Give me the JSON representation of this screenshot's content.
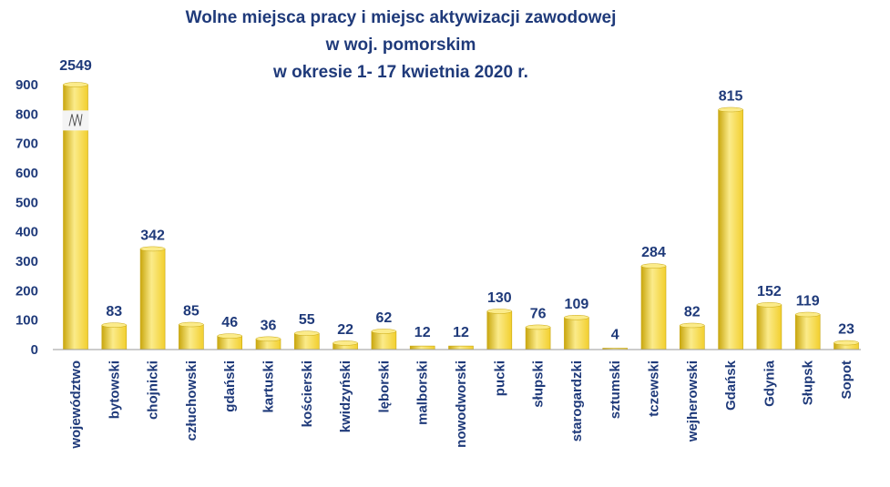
{
  "chart_data": {
    "type": "bar",
    "title_lines": [
      "Wolne miejsca pracy i miejsc aktywizacji zawodowej",
      "w woj. pomorskim",
      "w okresie 1- 17 kwietnia 2020 r."
    ],
    "categories": [
      "województwo",
      "bytowski",
      "chojnicki",
      "człuchowski",
      "gdański",
      "kartuski",
      "kościerski",
      "kwidzyński",
      "lęborski",
      "malborski",
      "nowodworski",
      "pucki",
      "słupski",
      "starogardzki",
      "sztumski",
      "tczewski",
      "wejherowski",
      "Gdańsk",
      "Gdynia",
      "Słupsk",
      "Sopot"
    ],
    "values": [
      2549,
      83,
      342,
      85,
      46,
      36,
      55,
      22,
      62,
      12,
      12,
      130,
      76,
      109,
      4,
      284,
      82,
      815,
      152,
      119,
      23
    ],
    "value_labels": [
      "2549",
      "83",
      "342",
      "85",
      "46",
      "36",
      "55",
      "22",
      "62",
      "12",
      "12",
      "130",
      "76",
      "109",
      "4",
      "284",
      "82",
      "815",
      "152",
      "119",
      "23"
    ],
    "y_ticks": [
      "0",
      "100",
      "200",
      "300",
      "400",
      "500",
      "600",
      "700",
      "800",
      "900"
    ],
    "ylim": [
      0,
      900
    ],
    "axis_break_on_first_bar": true,
    "grid": false,
    "bar_color": "#f2cf2e",
    "bar_highlight": "#fbeb8a",
    "bar_shadow": "#c9a70f",
    "text_color": "#1f3a7a"
  }
}
